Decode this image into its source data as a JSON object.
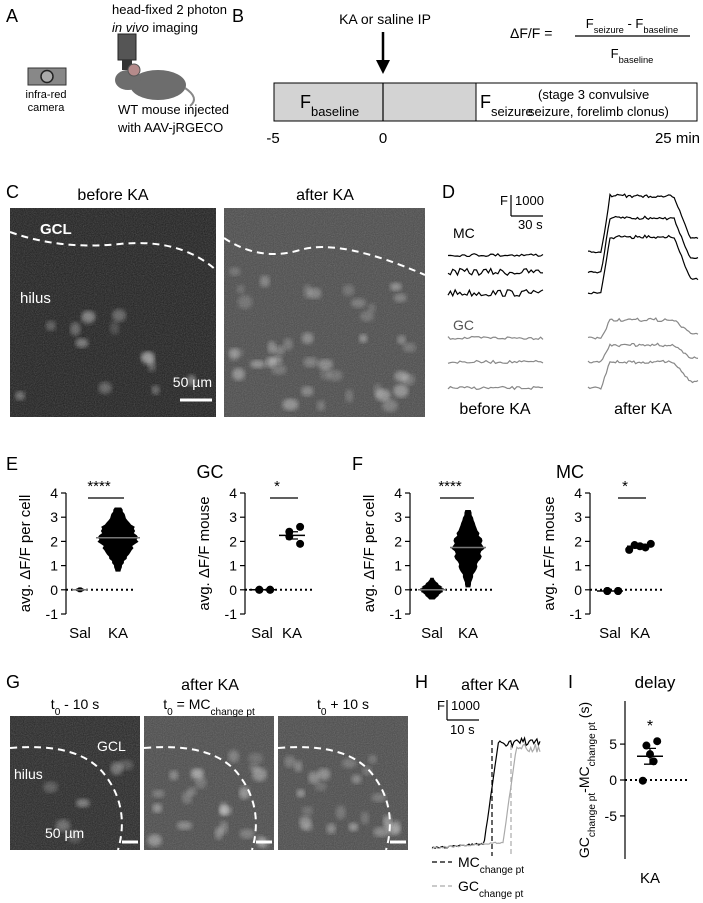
{
  "panel_A": {
    "label": "A",
    "imaging": {
      "line1": "head-fixed 2 photon",
      "italic": "in vivo",
      "rest": " imaging"
    },
    "camera": [
      "infra-red",
      "camera"
    ],
    "mouse": [
      "WT mouse injected",
      "with AAV-jRGECO"
    ]
  },
  "panel_B": {
    "label": "B",
    "injection": "KA or saline IP",
    "formula": {
      "lhs": "ΔF/F =",
      "F": "F",
      "seizure": "seizure",
      "minus": " - F",
      "baseline": "baseline"
    },
    "baseline_box": {
      "F": "F",
      "sub": "baseline"
    },
    "seizure_box": {
      "F": "F",
      "sub": "seizure",
      "note": [
        "(stage 3 convulsive",
        "seizure, forelimb clonus)"
      ]
    },
    "timeline": [
      "-5",
      "0",
      "25 min"
    ]
  },
  "panel_C": {
    "label": "C",
    "titles": [
      "before KA",
      "after KA"
    ],
    "gcl": "GCL",
    "hilus": "hilus",
    "scale": "50 µm"
  },
  "panel_D": {
    "label": "D",
    "scale_f": "F",
    "scale_f_value": "1000",
    "scale_t": "30 s",
    "cells": [
      "MC",
      "GC"
    ],
    "conditions": [
      "before KA",
      "after KA"
    ]
  },
  "panel_E": {
    "label": "E",
    "group": "GC"
  },
  "panel_F": {
    "label": "F",
    "group": "MC"
  },
  "panel_G": {
    "label": "G",
    "title": "after KA",
    "frames": [
      {
        "t": "t",
        "sub": "0",
        "rest": " - 10 s"
      },
      {
        "t": "t",
        "sub": "0",
        "rest": " = MC",
        "sub2": "change pt"
      },
      {
        "t": "t",
        "sub": "0",
        "rest": " + 10 s"
      }
    ],
    "gcl": "GCL",
    "hilus": "hilus",
    "scale": "50 µm"
  },
  "panel_H": {
    "label": "H",
    "title": "after KA",
    "scale_f": "F",
    "scale_f_value": "1000",
    "scale_t": "10 s",
    "legend": [
      {
        "name": "MC",
        "sub": "change pt"
      },
      {
        "name": "GC",
        "sub": "change pt"
      }
    ]
  },
  "panel_I": {
    "label": "I"
  },
  "chart_data": [
    {
      "type": "dotplot",
      "ylabel": "avg. ΔF/F per cell",
      "categories": [
        "Sal",
        "KA"
      ],
      "ylim": [
        -1,
        4
      ],
      "yticks": [
        -1,
        0,
        1,
        2,
        3,
        4
      ],
      "significance": "****",
      "color": "#000000",
      "groups": [
        {
          "mean": 0,
          "range": [
            -0.1,
            0.1
          ]
        },
        {
          "mean": 2.15,
          "range": [
            0.75,
            3.4
          ]
        }
      ]
    },
    {
      "type": "dotplot",
      "ylabel": "avg. ΔF/F mouse",
      "categories": [
        "Sal",
        "KA"
      ],
      "ylim": [
        -1,
        4
      ],
      "yticks": [
        -1,
        0,
        1,
        2,
        3,
        4
      ],
      "significance": "*",
      "color": "#000000",
      "groups": [
        {
          "points": [
            0,
            0,
            0,
            0
          ],
          "mean": 0
        },
        {
          "points": [
            2.6,
            2.4,
            2.2,
            1.9
          ],
          "mean": 2.25,
          "sem": 0.15
        }
      ]
    },
    {
      "type": "dotplot",
      "ylabel": "avg. ΔF/F per cell",
      "categories": [
        "Sal",
        "KA"
      ],
      "ylim": [
        -1,
        4
      ],
      "yticks": [
        -1,
        0,
        1,
        2,
        3,
        4
      ],
      "significance": "****",
      "color": "#000000",
      "groups": [
        {
          "mean": 0,
          "range": [
            -0.4,
            0.5
          ]
        },
        {
          "mean": 1.75,
          "range": [
            0.1,
            3.3
          ]
        }
      ]
    },
    {
      "type": "dotplot",
      "ylabel": "avg. ΔF/F mouse",
      "categories": [
        "Sal",
        "KA"
      ],
      "ylim": [
        -1,
        4
      ],
      "yticks": [
        -1,
        0,
        1,
        2,
        3,
        4
      ],
      "significance": "*",
      "color": "#000000",
      "groups": [
        {
          "points": [
            -0.05,
            -0.05,
            -0.05,
            -0.05
          ],
          "mean": -0.05
        },
        {
          "points": [
            1.9,
            1.85,
            1.8,
            1.75,
            1.65
          ],
          "mean": 1.8,
          "sem": 0.08
        }
      ]
    },
    {
      "type": "dotplot",
      "title": "delay",
      "ylabel": [
        {
          "text": "GC"
        },
        {
          "text": "change pt",
          "sub": true
        },
        {
          "text": "-MC"
        },
        {
          "text": "change pt",
          "sub": true
        },
        {
          "text": " (s)"
        }
      ],
      "categories": [
        "KA"
      ],
      "ylim": [
        -11,
        11
      ],
      "yticks": [
        -5,
        0,
        5
      ],
      "significance": "*",
      "color": "#000000",
      "groups": [
        {
          "points": [
            5.4,
            4.8,
            3.6,
            2.6,
            -0.1
          ],
          "mean": 3.3,
          "sem": 1.1
        }
      ]
    }
  ]
}
